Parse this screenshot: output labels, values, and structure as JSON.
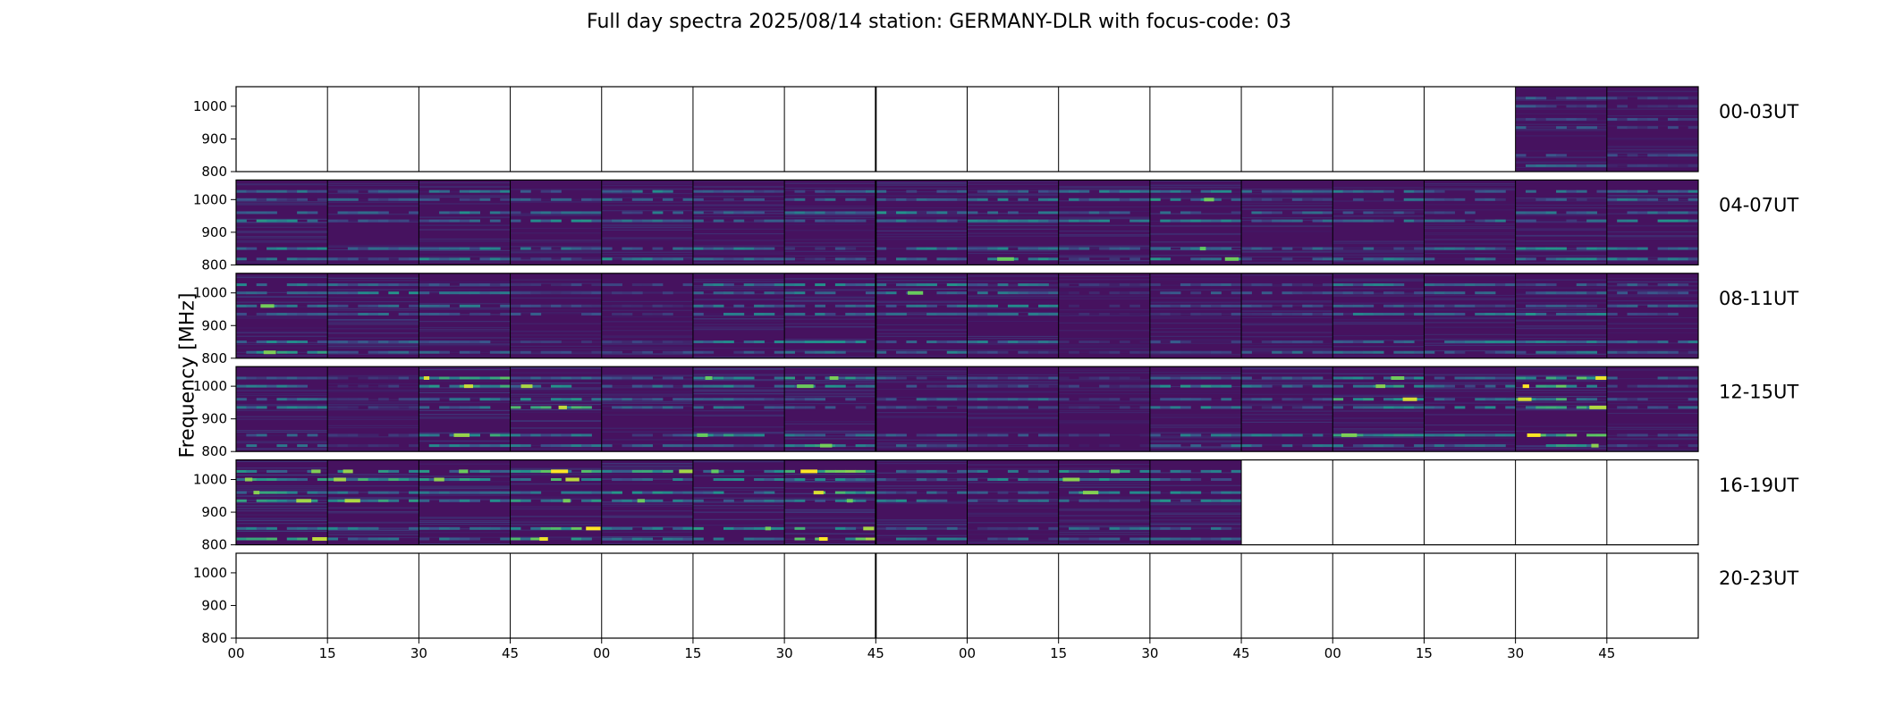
{
  "chart_data": {
    "type": "heatmap",
    "title": "Full day spectra 2025/08/14 station: GERMANY-DLR with focus-code: 03",
    "ylabel": "Frequency [MHz]",
    "xlabel": "",
    "ylim": [
      800,
      1060
    ],
    "y_ticks": [
      800,
      900,
      1000
    ],
    "x_tick_labels": [
      "00",
      "15",
      "30",
      "45",
      "00",
      "15",
      "30",
      "45",
      "00",
      "15",
      "30",
      "45",
      "00",
      "15",
      "30",
      "45"
    ],
    "panels_per_row": 16,
    "panel_minutes": 15,
    "colormap": [
      "#440154",
      "#3b528b",
      "#21918c",
      "#5ec962",
      "#fde725"
    ],
    "background_color": "#46125f",
    "emission_bands_mhz": [
      818,
      850,
      935,
      960,
      1000,
      1025
    ],
    "rows": [
      {
        "label": "00-03UT",
        "panels": [
          0,
          0,
          0,
          0,
          0,
          0,
          0,
          0,
          0,
          0,
          0,
          0,
          0,
          0,
          0.45,
          0.3
        ]
      },
      {
        "label": "04-07UT",
        "panels": [
          0.55,
          0.5,
          0.55,
          0.55,
          0.55,
          0.5,
          0.45,
          0.6,
          0.6,
          0.55,
          0.6,
          0.5,
          0.5,
          0.45,
          0.55,
          0.55
        ]
      },
      {
        "label": "08-11UT",
        "panels": [
          0.6,
          0.6,
          0.5,
          0.35,
          0.3,
          0.55,
          0.55,
          0.6,
          0.55,
          0.25,
          0.35,
          0.4,
          0.5,
          0.55,
          0.55,
          0.5
        ]
      },
      {
        "label": "12-15UT",
        "panels": [
          0.55,
          0.3,
          0.75,
          0.8,
          0.45,
          0.6,
          0.6,
          0.4,
          0.4,
          0.25,
          0.55,
          0.5,
          0.75,
          0.55,
          0.85,
          0.4
        ]
      },
      {
        "label": "16-19UT",
        "panels": [
          0.8,
          0.7,
          0.65,
          0.85,
          0.7,
          0.75,
          0.9,
          0.6,
          0.5,
          0.65,
          0.55,
          0,
          0,
          0,
          0,
          0
        ]
      },
      {
        "label": "20-23UT",
        "panels": [
          0,
          0,
          0,
          0,
          0,
          0,
          0,
          0,
          0,
          0,
          0,
          0,
          0,
          0,
          0,
          0
        ]
      }
    ]
  }
}
